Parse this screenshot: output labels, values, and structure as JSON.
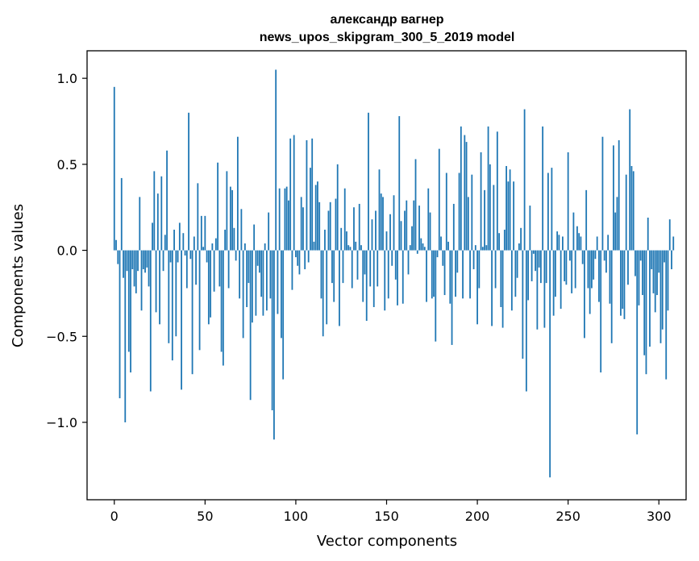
{
  "chart_data": {
    "type": "bar",
    "title_lines": [
      "александр вагнер",
      "news_upos_skipgram_300_5_2019 model"
    ],
    "xlabel": "Vector components",
    "ylabel": "Components values",
    "xlim": [
      -15,
      315
    ],
    "ylim": [
      -1.45,
      1.16
    ],
    "xticks": [
      0,
      50,
      100,
      150,
      200,
      250,
      300
    ],
    "xtick_labels": [
      "0",
      "50",
      "100",
      "150",
      "200",
      "250",
      "300"
    ],
    "yticks": [
      -1.0,
      -0.5,
      0.0,
      0.5,
      1.0
    ],
    "ytick_labels": [
      "−1.0",
      "−0.5",
      "0.0",
      "0.5",
      "1.0"
    ],
    "grid": false,
    "bar_color": "#1f77b4",
    "values": [
      0.95,
      0.06,
      -0.08,
      -0.86,
      0.42,
      -0.16,
      -1.0,
      -0.12,
      -0.59,
      -0.71,
      -0.11,
      -0.21,
      -0.25,
      -0.12,
      0.31,
      -0.35,
      -0.11,
      -0.13,
      -0.1,
      -0.21,
      -0.82,
      0.16,
      0.46,
      -0.36,
      0.33,
      -0.43,
      0.43,
      -0.12,
      0.09,
      0.58,
      -0.54,
      -0.07,
      -0.64,
      0.12,
      -0.5,
      -0.07,
      0.16,
      -0.81,
      0.1,
      -0.03,
      -0.22,
      0.8,
      -0.05,
      -0.72,
      0.08,
      -0.2,
      0.39,
      -0.58,
      0.2,
      0.02,
      0.2,
      -0.07,
      -0.43,
      -0.39,
      0.04,
      -0.24,
      0.07,
      0.51,
      -0.21,
      -0.59,
      -0.67,
      0.12,
      0.46,
      -0.22,
      0.37,
      0.35,
      0.13,
      -0.06,
      0.66,
      -0.28,
      0.24,
      -0.51,
      0.04,
      -0.33,
      -0.19,
      -0.87,
      -0.42,
      0.15,
      -0.38,
      -0.09,
      -0.13,
      -0.27,
      -0.38,
      0.04,
      -0.35,
      0.22,
      -0.28,
      -0.93,
      -1.1,
      1.05,
      -0.37,
      0.36,
      -0.51,
      -0.75,
      0.36,
      0.37,
      0.29,
      0.65,
      -0.23,
      0.67,
      -0.04,
      -0.09,
      -0.14,
      0.31,
      0.25,
      -0.11,
      0.64,
      -0.07,
      0.48,
      0.65,
      0.05,
      0.38,
      0.4,
      0.28,
      -0.28,
      -0.5,
      0.12,
      -0.43,
      0.23,
      0.28,
      -0.19,
      -0.3,
      0.3,
      0.5,
      -0.44,
      0.13,
      -0.19,
      0.36,
      0.11,
      0.03,
      0.02,
      -0.22,
      0.25,
      0.05,
      -0.17,
      0.27,
      0.03,
      -0.3,
      -0.14,
      -0.41,
      0.8,
      -0.21,
      0.18,
      -0.33,
      0.23,
      -0.21,
      0.47,
      0.33,
      0.31,
      -0.35,
      0.11,
      -0.28,
      0.21,
      -0.09,
      0.32,
      -0.17,
      -0.32,
      0.78,
      0.17,
      -0.31,
      0.23,
      0.29,
      -0.14,
      0.03,
      0.14,
      0.29,
      0.53,
      -0.02,
      0.26,
      0.07,
      0.04,
      0.02,
      -0.3,
      0.36,
      0.22,
      -0.28,
      -0.27,
      -0.53,
      -0.04,
      0.59,
      0.08,
      -0.09,
      -0.26,
      0.45,
      0.05,
      -0.31,
      -0.55,
      0.27,
      -0.27,
      -0.13,
      0.45,
      0.72,
      -0.28,
      0.67,
      0.63,
      0.31,
      -0.28,
      0.44,
      -0.11,
      0.03,
      -0.43,
      -0.22,
      0.57,
      0.02,
      0.35,
      0.03,
      0.72,
      0.5,
      -0.44,
      0.38,
      -0.22,
      0.69,
      0.1,
      -0.33,
      -0.45,
      0.12,
      0.49,
      0.4,
      0.47,
      -0.35,
      0.4,
      -0.27,
      -0.16,
      0.04,
      0.13,
      -0.63,
      0.82,
      -0.82,
      -0.29,
      0.26,
      -0.18,
      -0.02,
      -0.12,
      -0.46,
      -0.1,
      -0.19,
      0.72,
      -0.45,
      -0.19,
      0.45,
      -1.32,
      0.48,
      -0.38,
      -0.27,
      0.11,
      0.09,
      -0.34,
      0.08,
      -0.18,
      -0.2,
      0.57,
      -0.06,
      -0.25,
      0.22,
      -0.22,
      0.14,
      0.1,
      0.08,
      -0.08,
      -0.51,
      0.35,
      -0.22,
      -0.37,
      -0.22,
      -0.17,
      -0.05,
      0.08,
      -0.3,
      -0.71,
      0.66,
      -0.06,
      -0.13,
      0.09,
      -0.31,
      -0.54,
      0.61,
      0.22,
      0.31,
      0.64,
      -0.38,
      -0.34,
      -0.4,
      0.44,
      -0.2,
      0.82,
      0.49,
      0.46,
      -0.15,
      -1.07,
      -0.32,
      -0.06,
      -0.26,
      -0.61,
      -0.72,
      0.19,
      -0.56,
      -0.11,
      -0.25,
      -0.36,
      -0.26,
      -0.13,
      -0.54,
      -0.46,
      -0.07,
      -0.75,
      -0.35,
      0.18,
      -0.11,
      0.08
    ]
  }
}
